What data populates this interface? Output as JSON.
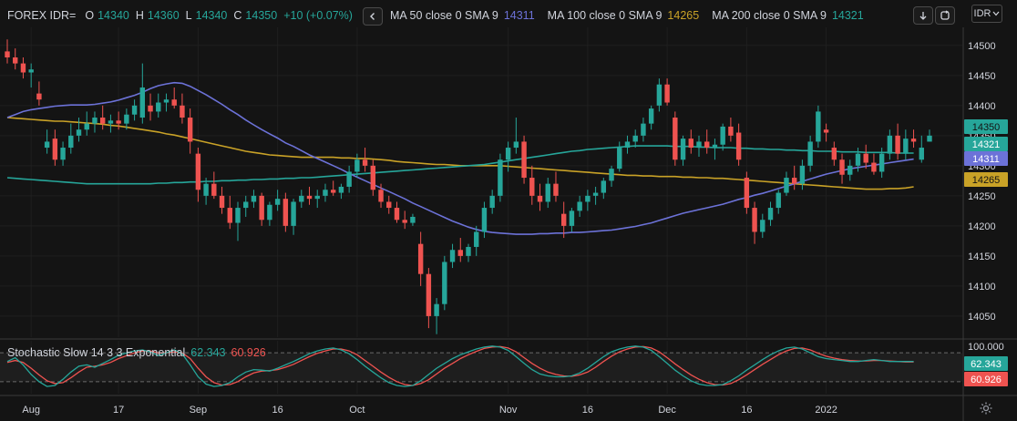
{
  "legend": {
    "symbol": "FOREX IDR=",
    "o_label": "O",
    "o_value": "14340",
    "h_label": "H",
    "h_value": "14360",
    "l_label": "L",
    "l_value": "14340",
    "c_label": "C",
    "c_value": "14350",
    "change": "+10 (+0.07%)"
  },
  "toolbar": {
    "collapse_icon": "chevron-left-icon",
    "download_icon": "arrow-down-icon",
    "refresh_icon": "refresh-icon",
    "currency": "IDR",
    "settings_icon": "gear-icon"
  },
  "ma_legend": [
    {
      "label": "MA 50 close 0 SMA 9",
      "value": "14311",
      "color": "#6c72d8"
    },
    {
      "label": "MA 100 close 0 SMA 9",
      "value": "14265",
      "color": "#c9a227"
    },
    {
      "label": "MA 200 close 0 SMA 9",
      "value": "14321",
      "color": "#26a69a"
    }
  ],
  "stoch_legend": {
    "label": "Stochastic Slow 14 3 3 Exponential",
    "k": "62.343",
    "d": "60.926"
  },
  "chart_data": {
    "type": "candlestick",
    "ylim": [
      14015,
      14530
    ],
    "y_ticks": [
      14050,
      14100,
      14150,
      14200,
      14250,
      14300,
      14350,
      14400,
      14450,
      14500
    ],
    "x_labels": [
      "Aug",
      "17",
      "Sep",
      "16",
      "Oct",
      "Nov",
      "16",
      "Dec",
      "16",
      "2022"
    ],
    "x_label_index": [
      3,
      14,
      24,
      34,
      44,
      63,
      73,
      83,
      93,
      103
    ],
    "price_tags": [
      {
        "value": 14350,
        "label": "14350",
        "color": "#26a69a"
      },
      {
        "value": 14321,
        "label": "14321",
        "color": "#26a69a"
      },
      {
        "value": 14311,
        "label": "14311",
        "color": "#6c72d8"
      },
      {
        "value": 14265,
        "label": "14265",
        "color": "#c9a227"
      }
    ],
    "colors": {
      "up": "#26a69a",
      "down": "#ef5350",
      "ma50": "#6c72d8",
      "ma100": "#c9a227",
      "ma200": "#26a69a",
      "stoch_k": "#26a69a",
      "stoch_d": "#ef5350"
    },
    "candles": [
      [
        14490,
        14510,
        14470,
        14480
      ],
      [
        14480,
        14495,
        14460,
        14470
      ],
      [
        14470,
        14480,
        14445,
        14455
      ],
      [
        14455,
        14470,
        14430,
        14460
      ],
      [
        14420,
        14440,
        14400,
        14410
      ],
      [
        14330,
        14360,
        14320,
        14340
      ],
      [
        14345,
        14360,
        14300,
        14310
      ],
      [
        14310,
        14340,
        14300,
        14330
      ],
      [
        14330,
        14370,
        14320,
        14350
      ],
      [
        14350,
        14380,
        14340,
        14360
      ],
      [
        14360,
        14390,
        14350,
        14370
      ],
      [
        14370,
        14390,
        14355,
        14380
      ],
      [
        14380,
        14400,
        14360,
        14370
      ],
      [
        14370,
        14385,
        14355,
        14375
      ],
      [
        14375,
        14390,
        14360,
        14370
      ],
      [
        14370,
        14395,
        14360,
        14385
      ],
      [
        14385,
        14410,
        14375,
        14400
      ],
      [
        14380,
        14470,
        14370,
        14430
      ],
      [
        14400,
        14420,
        14375,
        14390
      ],
      [
        14390,
        14420,
        14380,
        14405
      ],
      [
        14405,
        14420,
        14390,
        14410
      ],
      [
        14410,
        14430,
        14395,
        14400
      ],
      [
        14400,
        14420,
        14370,
        14380
      ],
      [
        14380,
        14395,
        14320,
        14340
      ],
      [
        14320,
        14330,
        14240,
        14260
      ],
      [
        14250,
        14280,
        14235,
        14270
      ],
      [
        14270,
        14290,
        14245,
        14250
      ],
      [
        14250,
        14265,
        14220,
        14230
      ],
      [
        14230,
        14250,
        14195,
        14205
      ],
      [
        14205,
        14240,
        14175,
        14230
      ],
      [
        14230,
        14250,
        14215,
        14240
      ],
      [
        14240,
        14260,
        14230,
        14250
      ],
      [
        14250,
        14255,
        14200,
        14210
      ],
      [
        14210,
        14240,
        14200,
        14235
      ],
      [
        14235,
        14260,
        14225,
        14245
      ],
      [
        14245,
        14255,
        14190,
        14200
      ],
      [
        14200,
        14245,
        14185,
        14240
      ],
      [
        14240,
        14260,
        14230,
        14250
      ],
      [
        14250,
        14265,
        14235,
        14245
      ],
      [
        14245,
        14260,
        14230,
        14250
      ],
      [
        14250,
        14270,
        14240,
        14260
      ],
      [
        14260,
        14275,
        14250,
        14255
      ],
      [
        14255,
        14270,
        14245,
        14265
      ],
      [
        14265,
        14300,
        14255,
        14290
      ],
      [
        14290,
        14320,
        14280,
        14310
      ],
      [
        14310,
        14330,
        14290,
        14300
      ],
      [
        14300,
        14310,
        14250,
        14260
      ],
      [
        14260,
        14270,
        14230,
        14240
      ],
      [
        14240,
        14250,
        14220,
        14230
      ],
      [
        14230,
        14240,
        14205,
        14210
      ],
      [
        14210,
        14225,
        14195,
        14205
      ],
      [
        14205,
        14220,
        14200,
        14215
      ],
      [
        14170,
        14190,
        14100,
        14120
      ],
      [
        14120,
        14130,
        14030,
        14050
      ],
      [
        14050,
        14080,
        14020,
        14070
      ],
      [
        14070,
        14150,
        14060,
        14140
      ],
      [
        14140,
        14170,
        14130,
        14160
      ],
      [
        14160,
        14180,
        14140,
        14150
      ],
      [
        14150,
        14170,
        14140,
        14165
      ],
      [
        14165,
        14200,
        14150,
        14190
      ],
      [
        14190,
        14240,
        14180,
        14230
      ],
      [
        14230,
        14260,
        14220,
        14250
      ],
      [
        14250,
        14320,
        14240,
        14310
      ],
      [
        14310,
        14340,
        14290,
        14330
      ],
      [
        14330,
        14380,
        14320,
        14340
      ],
      [
        14340,
        14350,
        14270,
        14280
      ],
      [
        14280,
        14300,
        14235,
        14250
      ],
      [
        14250,
        14270,
        14225,
        14240
      ],
      [
        14240,
        14280,
        14230,
        14270
      ],
      [
        14270,
        14290,
        14240,
        14250
      ],
      [
        14220,
        14240,
        14180,
        14200
      ],
      [
        14200,
        14230,
        14190,
        14225
      ],
      [
        14225,
        14250,
        14215,
        14240
      ],
      [
        14240,
        14260,
        14225,
        14250
      ],
      [
        14250,
        14265,
        14235,
        14255
      ],
      [
        14255,
        14280,
        14245,
        14275
      ],
      [
        14275,
        14300,
        14265,
        14295
      ],
      [
        14295,
        14340,
        14290,
        14330
      ],
      [
        14330,
        14350,
        14320,
        14340
      ],
      [
        14340,
        14360,
        14330,
        14350
      ],
      [
        14350,
        14380,
        14340,
        14370
      ],
      [
        14370,
        14400,
        14360,
        14395
      ],
      [
        14400,
        14445,
        14390,
        14435
      ],
      [
        14435,
        14445,
        14400,
        14405
      ],
      [
        14380,
        14390,
        14300,
        14310
      ],
      [
        14310,
        14350,
        14300,
        14345
      ],
      [
        14345,
        14360,
        14320,
        14330
      ],
      [
        14330,
        14350,
        14315,
        14340
      ],
      [
        14340,
        14360,
        14320,
        14330
      ],
      [
        14330,
        14345,
        14310,
        14335
      ],
      [
        14335,
        14370,
        14325,
        14365
      ],
      [
        14365,
        14380,
        14340,
        14350
      ],
      [
        14355,
        14370,
        14300,
        14310
      ],
      [
        14280,
        14290,
        14220,
        14230
      ],
      [
        14230,
        14240,
        14170,
        14190
      ],
      [
        14190,
        14220,
        14180,
        14210
      ],
      [
        14210,
        14240,
        14200,
        14230
      ],
      [
        14230,
        14260,
        14220,
        14255
      ],
      [
        14255,
        14290,
        14250,
        14280
      ],
      [
        14280,
        14300,
        14260,
        14270
      ],
      [
        14270,
        14310,
        14260,
        14300
      ],
      [
        14300,
        14350,
        14290,
        14340
      ],
      [
        14340,
        14400,
        14330,
        14390
      ],
      [
        14360,
        14370,
        14340,
        14355
      ],
      [
        14330,
        14340,
        14300,
        14310
      ],
      [
        14310,
        14320,
        14270,
        14285
      ],
      [
        14285,
        14310,
        14275,
        14300
      ],
      [
        14300,
        14330,
        14290,
        14320
      ],
      [
        14320,
        14335,
        14295,
        14305
      ],
      [
        14305,
        14320,
        14285,
        14290
      ],
      [
        14290,
        14330,
        14280,
        14320
      ],
      [
        14320,
        14360,
        14310,
        14350
      ],
      [
        14350,
        14370,
        14310,
        14320
      ],
      [
        14320,
        14360,
        14310,
        14345
      ],
      [
        14345,
        14360,
        14330,
        14340
      ],
      [
        14310,
        14350,
        14305,
        14330
      ],
      [
        14340,
        14360,
        14340,
        14350
      ]
    ],
    "ma50": [
      14380,
      14385,
      14390,
      14393,
      14395,
      14397,
      14399,
      14400,
      14401,
      14401,
      14401,
      14402,
      14404,
      14406,
      14409,
      14413,
      14417,
      14422,
      14428,
      14433,
      14436,
      14438,
      14437,
      14432,
      14425,
      14418,
      14410,
      14402,
      14393,
      14385,
      14376,
      14368,
      14360,
      14353,
      14346,
      14338,
      14332,
      14325,
      14318,
      14312,
      14306,
      14300,
      14294,
      14287,
      14281,
      14275,
      14269,
      14263,
      14257,
      14251,
      14245,
      14238,
      14232,
      14226,
      14220,
      14214,
      14208,
      14203,
      14198,
      14194,
      14191,
      14189,
      14188,
      14187,
      14186,
      14186,
      14186,
      14187,
      14187,
      14188,
      14188,
      14189,
      14189,
      14190,
      14191,
      14192,
      14193,
      14195,
      14197,
      14199,
      14202,
      14205,
      14209,
      14213,
      14217,
      14221,
      14224,
      14227,
      14230,
      14233,
      14236,
      14240,
      14244,
      14247,
      14251,
      14254,
      14258,
      14262,
      14266,
      14270,
      14274,
      14278,
      14282,
      14286,
      14289,
      14292,
      14295,
      14297,
      14299,
      14301,
      14303,
      14305,
      14307,
      14309,
      14311
    ],
    "ma100": [
      14380,
      14379,
      14378,
      14377,
      14376,
      14375,
      14374,
      14374,
      14373,
      14372,
      14371,
      14370,
      14369,
      14367,
      14366,
      14364,
      14362,
      14360,
      14358,
      14356,
      14353,
      14351,
      14348,
      14345,
      14342,
      14339,
      14336,
      14333,
      14330,
      14327,
      14324,
      14322,
      14320,
      14318,
      14317,
      14316,
      14315,
      14314,
      14314,
      14314,
      14314,
      14314,
      14313,
      14313,
      14312,
      14312,
      14311,
      14310,
      14309,
      14307,
      14306,
      14305,
      14304,
      14303,
      14302,
      14302,
      14301,
      14300,
      14300,
      14300,
      14300,
      14300,
      14300,
      14299,
      14298,
      14297,
      14296,
      14295,
      14294,
      14293,
      14292,
      14291,
      14290,
      14289,
      14288,
      14287,
      14286,
      14285,
      14284,
      14284,
      14283,
      14283,
      14282,
      14282,
      14282,
      14281,
      14281,
      14280,
      14280,
      14279,
      14279,
      14278,
      14277,
      14276,
      14275,
      14274,
      14273,
      14272,
      14271,
      14270,
      14269,
      14268,
      14267,
      14266,
      14265,
      14264,
      14263,
      14262,
      14261,
      14261,
      14261,
      14262,
      14262,
      14263,
      14265
    ],
    "ma200": [
      14280,
      14279,
      14278,
      14277,
      14276,
      14275,
      14274,
      14273,
      14272,
      14271,
      14270,
      14270,
      14270,
      14270,
      14270,
      14270,
      14270,
      14270,
      14270,
      14271,
      14271,
      14272,
      14272,
      14273,
      14273,
      14274,
      14274,
      14275,
      14275,
      14276,
      14276,
      14277,
      14277,
      14278,
      14278,
      14279,
      14279,
      14280,
      14280,
      14281,
      14282,
      14283,
      14284,
      14285,
      14286,
      14287,
      14288,
      14289,
      14290,
      14291,
      14292,
      14293,
      14294,
      14295,
      14296,
      14297,
      14298,
      14299,
      14300,
      14301,
      14302,
      14304,
      14306,
      14308,
      14310,
      14312,
      14314,
      14316,
      14318,
      14320,
      14322,
      14324,
      14325,
      14327,
      14328,
      14329,
      14330,
      14331,
      14332,
      14333,
      14333,
      14333,
      14333,
      14333,
      14332,
      14332,
      14332,
      14331,
      14331,
      14330,
      14330,
      14330,
      14329,
      14329,
      14328,
      14328,
      14327,
      14327,
      14326,
      14326,
      14325,
      14325,
      14324,
      14324,
      14324,
      14323,
      14323,
      14323,
      14322,
      14322,
      14322,
      14322,
      14321,
      14321,
      14321
    ],
    "stochastic": {
      "ylim": [
        -5,
        105
      ],
      "levels": [
        80,
        20
      ],
      "level_max_label": "100.000",
      "k": [
        62,
        70,
        55,
        35,
        20,
        10,
        12,
        25,
        40,
        52,
        55,
        50,
        58,
        66,
        75,
        80,
        84,
        86,
        82,
        74,
        80,
        86,
        78,
        55,
        30,
        15,
        10,
        12,
        18,
        30,
        40,
        45,
        44,
        42,
        48,
        55,
        62,
        70,
        78,
        84,
        88,
        90,
        86,
        78,
        66,
        52,
        40,
        28,
        18,
        12,
        10,
        12,
        22,
        35,
        48,
        58,
        68,
        76,
        82,
        88,
        92,
        94,
        92,
        85,
        72,
        58,
        45,
        36,
        32,
        30,
        30,
        32,
        38,
        48,
        60,
        72,
        82,
        88,
        92,
        94,
        92,
        85,
        72,
        58,
        44,
        32,
        22,
        15,
        12,
        12,
        14,
        22,
        32,
        44,
        55,
        66,
        76,
        84,
        90,
        92,
        88,
        80,
        72,
        68,
        66,
        64,
        62,
        62,
        64,
        66,
        64,
        62,
        62,
        62,
        62
      ],
      "d": [
        60,
        64,
        60,
        48,
        34,
        22,
        16,
        18,
        28,
        40,
        50,
        52,
        55,
        60,
        68,
        74,
        80,
        84,
        84,
        80,
        80,
        82,
        80,
        68,
        48,
        30,
        18,
        13,
        14,
        20,
        30,
        38,
        42,
        43,
        45,
        50,
        56,
        64,
        72,
        79,
        84,
        88,
        88,
        84,
        76,
        64,
        52,
        40,
        29,
        20,
        14,
        12,
        16,
        24,
        36,
        48,
        58,
        68,
        76,
        83,
        89,
        92,
        93,
        90,
        82,
        70,
        58,
        48,
        40,
        35,
        32,
        31,
        34,
        40,
        50,
        62,
        73,
        82,
        88,
        92,
        93,
        90,
        82,
        70,
        57,
        45,
        34,
        25,
        18,
        14,
        13,
        16,
        24,
        34,
        45,
        56,
        66,
        76,
        84,
        89,
        90,
        86,
        79,
        73,
        69,
        66,
        64,
        63,
        63,
        64,
        64,
        63,
        62,
        61,
        61
      ]
    }
  }
}
